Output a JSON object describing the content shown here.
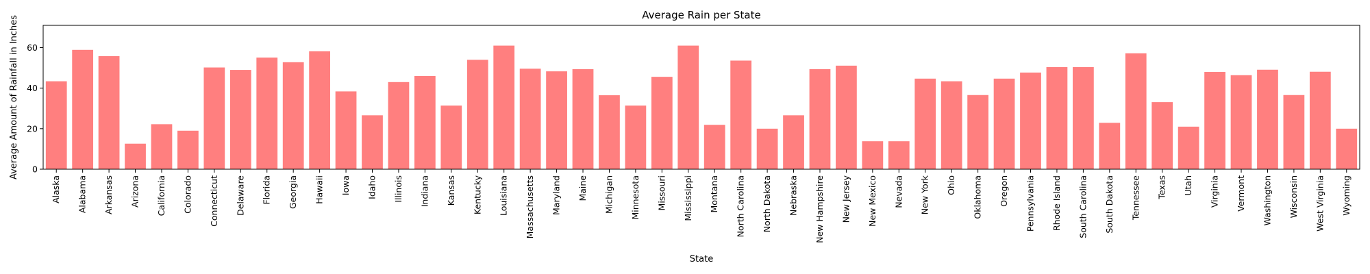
{
  "chart_data": {
    "type": "bar",
    "title": "Average Rain per State",
    "xlabel": "State",
    "ylabel": "Average Amount of Rainfall in Inches",
    "ylim": [
      0,
      71
    ],
    "yticks": [
      0,
      20,
      40,
      60
    ],
    "grid": false,
    "bar_color": "#ff7f7f",
    "categories": [
      "Alaska",
      "Alabama",
      "Arkansas",
      "Arizona",
      "California",
      "Colorado",
      "Connecticut",
      "Delaware",
      "Florida",
      "Georgia",
      "Hawaii",
      "Iowa",
      "Idaho",
      "Illinois",
      "Indiana",
      "Kansas",
      "Kentucky",
      "Louisiana",
      "Massachusetts",
      "Maryland",
      "Maine",
      "Michigan",
      "Minnesota",
      "Missouri",
      "Mississippi",
      "Montana",
      "North Carolina",
      "North Dakota",
      "Nebraska",
      "New Hampshire",
      "New Jersey",
      "New Mexico",
      "Nevada",
      "New York",
      "Ohio",
      "Oklahoma",
      "Oregon",
      "Pennsylvania",
      "Rhode Island",
      "South Carolina",
      "South Dakota",
      "Tennessee",
      "Texas",
      "Utah",
      "Virginia",
      "Vermont",
      "Washington",
      "Wisconsin",
      "West Virginia",
      "Wyoming"
    ],
    "values": [
      43.4,
      58.9,
      55.8,
      12.6,
      22.2,
      19.0,
      50.2,
      49.0,
      55.1,
      52.8,
      58.2,
      38.4,
      26.6,
      43.0,
      46.0,
      31.4,
      54.0,
      61.0,
      49.6,
      48.3,
      49.4,
      36.5,
      31.4,
      45.6,
      61.0,
      21.9,
      53.6,
      20.0,
      26.6,
      49.4,
      51.1,
      13.8,
      13.8,
      44.7,
      43.4,
      36.6,
      44.7,
      47.7,
      50.4,
      50.4,
      22.9,
      57.2,
      33.1,
      21.0,
      48.0,
      46.4,
      49.1,
      36.6,
      48.1,
      20.0
    ]
  }
}
